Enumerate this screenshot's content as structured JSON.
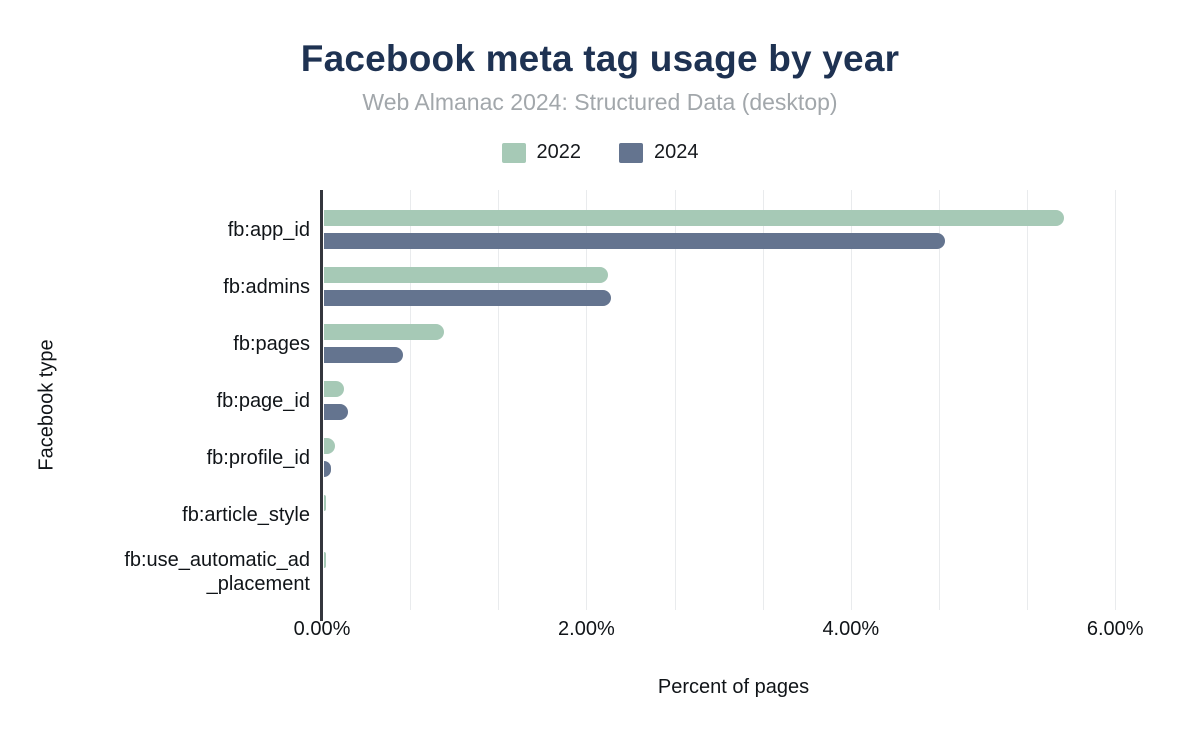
{
  "chart_data": {
    "type": "bar",
    "orientation": "horizontal",
    "title": "Facebook meta tag usage by year",
    "subtitle": "Web Almanac 2024: Structured Data (desktop)",
    "xlabel": "Percent of pages",
    "ylabel": "Facebook type",
    "categories": [
      "fb:app_id",
      "fb:admins",
      "fb:pages",
      "fb:page_id",
      "fb:profile_id",
      "fb:article_style",
      "fb:use_automatic_ad\n_placement"
    ],
    "series": [
      {
        "name": "2022",
        "color": "#a6c9b6",
        "values": [
          5.6,
          2.15,
          0.91,
          0.15,
          0.08,
          0.01,
          0.01
        ]
      },
      {
        "name": "2024",
        "color": "#64748f",
        "values": [
          4.7,
          2.17,
          0.6,
          0.18,
          0.05,
          0,
          0
        ]
      }
    ],
    "x_ticks": [
      {
        "value": 0,
        "label": "0.00%"
      },
      {
        "value": 2,
        "label": "2.00%"
      },
      {
        "value": 4,
        "label": "4.00%"
      },
      {
        "value": 6,
        "label": "6.00%"
      }
    ],
    "xlim": [
      0,
      6.21
    ],
    "x_minor_gridline_step_pct": 0.6667,
    "grid": true,
    "legend_position": "top",
    "colors": {
      "title": "#1e3252",
      "subtitle": "#a2a7ab",
      "axis_line": "#34363d",
      "gridline": "#e9ebed",
      "text": "#101418"
    }
  }
}
